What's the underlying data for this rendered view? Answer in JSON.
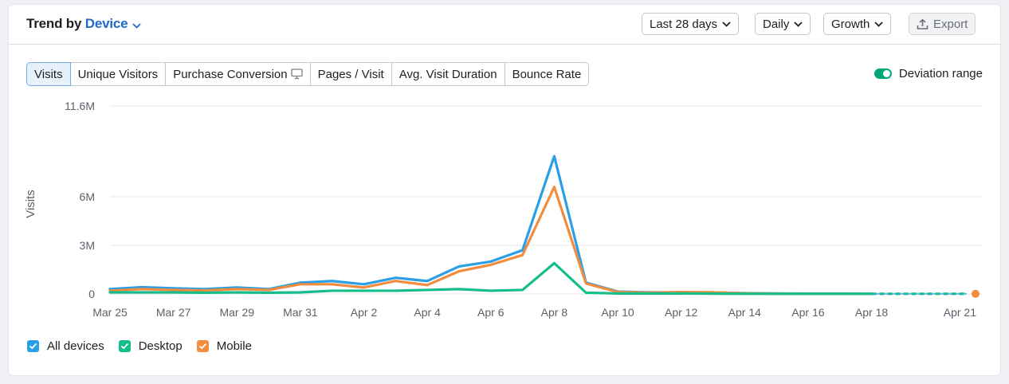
{
  "header": {
    "title_prefix": "Trend by",
    "title_dimension": "Device",
    "period": "Last 28 days",
    "granularity": "Daily",
    "metric_mode": "Growth",
    "export_label": "Export"
  },
  "tabs": [
    {
      "label": "Visits",
      "active": true
    },
    {
      "label": "Unique Visitors",
      "active": false
    },
    {
      "label": "Purchase Conversion",
      "active": false
    },
    {
      "label": "Pages / Visit",
      "active": false
    },
    {
      "label": "Avg. Visit Duration",
      "active": false
    },
    {
      "label": "Bounce Rate",
      "active": false
    }
  ],
  "deviation_toggle": {
    "label": "Deviation range",
    "on": true
  },
  "legend": [
    {
      "label": "All devices",
      "color": "#2b9fe6"
    },
    {
      "label": "Desktop",
      "color": "#14bd8b"
    },
    {
      "label": "Mobile",
      "color": "#f28c3f"
    }
  ],
  "chart_data": {
    "type": "line",
    "ylabel": "Visits",
    "y_ticks": [
      {
        "value": 0,
        "label": "0"
      },
      {
        "value": 3000000,
        "label": "3M"
      },
      {
        "value": 6000000,
        "label": "6M"
      },
      {
        "value": 11600000,
        "label": "11.6M"
      }
    ],
    "ylim": [
      0,
      11600000
    ],
    "x": [
      "Mar 25",
      "Mar 26",
      "Mar 27",
      "Mar 28",
      "Mar 29",
      "Mar 30",
      "Mar 31",
      "Apr 1",
      "Apr 2",
      "Apr 3",
      "Apr 4",
      "Apr 5",
      "Apr 6",
      "Apr 7",
      "Apr 8",
      "Apr 9",
      "Apr 10",
      "Apr 11",
      "Apr 12",
      "Apr 13",
      "Apr 14",
      "Apr 15",
      "Apr 16",
      "Apr 17",
      "Apr 18",
      "Apr 19",
      "Apr 20",
      "Apr 21"
    ],
    "x_tick_labels": [
      "Mar 25",
      "Mar 27",
      "Mar 29",
      "Mar 31",
      "Apr 2",
      "Apr 4",
      "Apr 6",
      "Apr 8",
      "Apr 10",
      "Apr 12",
      "Apr 14",
      "Apr 16",
      "Apr 18",
      "Apr 21"
    ],
    "forecast_from": "Apr 18",
    "grid": true,
    "legend_position": "bottom-left",
    "series": [
      {
        "name": "All devices",
        "color": "#2b9fe6",
        "values": [
          300000,
          420000,
          350000,
          300000,
          400000,
          300000,
          700000,
          800000,
          600000,
          1000000,
          800000,
          1700000,
          2000000,
          2700000,
          8500000,
          700000,
          150000,
          100000,
          100000,
          100000,
          50000,
          30000,
          20000,
          20000,
          10000,
          null,
          null,
          null
        ]
      },
      {
        "name": "Desktop",
        "color": "#14bd8b",
        "values": [
          100000,
          100000,
          100000,
          80000,
          100000,
          80000,
          100000,
          200000,
          200000,
          200000,
          250000,
          300000,
          200000,
          250000,
          1900000,
          80000,
          30000,
          30000,
          30000,
          20000,
          10000,
          10000,
          10000,
          10000,
          10000,
          null,
          null,
          null
        ]
      },
      {
        "name": "Mobile",
        "color": "#f28c3f",
        "values": [
          200000,
          300000,
          250000,
          220000,
          300000,
          250000,
          600000,
          600000,
          400000,
          800000,
          550000,
          1400000,
          1800000,
          2400000,
          6600000,
          650000,
          120000,
          80000,
          120000,
          100000,
          40000,
          20000,
          10000,
          10000,
          10000,
          10000,
          10000,
          10000
        ]
      }
    ]
  }
}
